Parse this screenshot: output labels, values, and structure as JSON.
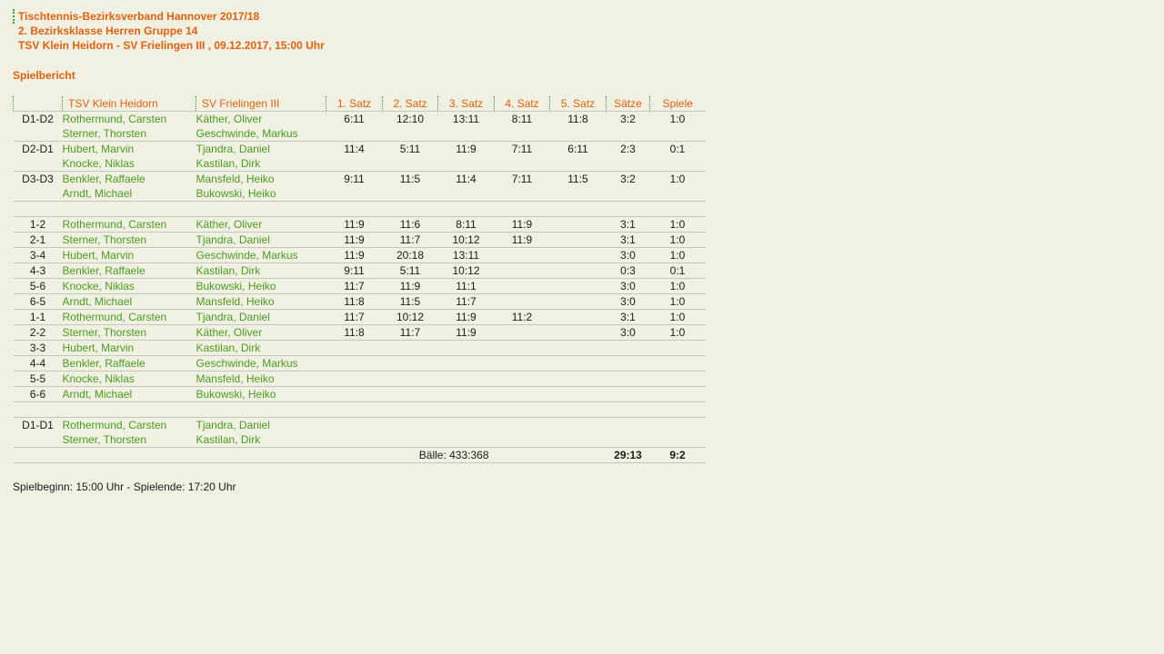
{
  "colors": {
    "background": "#f0f1e2",
    "accent_orange": "#e2600e",
    "player_green": "#4c9b21",
    "row_border": "#c6c7b8",
    "dotted_green": "#3a9e3a"
  },
  "header": {
    "line1": "Tischtennis-Bezirksverband Hannover 2017/18",
    "line2": "2. Bezirksklasse Herren Gruppe 14",
    "line3": "TSV Klein Heidorn - SV Frielingen III , 09.12.2017, 15:00 Uhr",
    "section_title": "Spielbericht"
  },
  "table": {
    "columns": [
      "",
      "TSV Klein Heidorn",
      "SV Frielingen III",
      "1. Satz",
      "2. Satz",
      "3. Satz",
      "4. Satz",
      "5. Satz",
      "Sätze",
      "Spiele"
    ],
    "rows": [
      {
        "no": "D1-D2",
        "home": [
          "Rothermund, Carsten",
          "Sterner, Thorsten"
        ],
        "away": [
          "Käther, Oliver",
          "Geschwinde, Markus"
        ],
        "sets": [
          "6:11",
          "12:10",
          "13:11",
          "8:11",
          "11:8"
        ],
        "saetze": "3:2",
        "spiele": "1:0"
      },
      {
        "no": "D2-D1",
        "home": [
          "Hubert, Marvin",
          "Knocke, Niklas"
        ],
        "away": [
          "Tjandra, Daniel",
          "Kastilan, Dirk"
        ],
        "sets": [
          "11:4",
          "5:11",
          "11:9",
          "7:11",
          "6:11"
        ],
        "saetze": "2:3",
        "spiele": "0:1"
      },
      {
        "no": "D3-D3",
        "home": [
          "Benkler, Raffaele",
          "Arndt, Michael"
        ],
        "away": [
          "Mansfeld, Heiko",
          "Bukowski, Heiko"
        ],
        "sets": [
          "9:11",
          "11:5",
          "11:4",
          "7:11",
          "11:5"
        ],
        "saetze": "3:2",
        "spiele": "1:0"
      },
      {
        "spacer": true
      },
      {
        "no": "1-2",
        "home": [
          "Rothermund, Carsten"
        ],
        "away": [
          "Käther, Oliver"
        ],
        "sets": [
          "11:9",
          "11:6",
          "8:11",
          "11:9",
          ""
        ],
        "saetze": "3:1",
        "spiele": "1:0"
      },
      {
        "no": "2-1",
        "home": [
          "Sterner, Thorsten"
        ],
        "away": [
          "Tjandra, Daniel"
        ],
        "sets": [
          "11:9",
          "11:7",
          "10:12",
          "11:9",
          ""
        ],
        "saetze": "3:1",
        "spiele": "1:0"
      },
      {
        "no": "3-4",
        "home": [
          "Hubert, Marvin"
        ],
        "away": [
          "Geschwinde, Markus"
        ],
        "sets": [
          "11:9",
          "20:18",
          "13:11",
          "",
          ""
        ],
        "saetze": "3:0",
        "spiele": "1:0"
      },
      {
        "no": "4-3",
        "home": [
          "Benkler, Raffaele"
        ],
        "away": [
          "Kastilan, Dirk"
        ],
        "sets": [
          "9:11",
          "5:11",
          "10:12",
          "",
          ""
        ],
        "saetze": "0:3",
        "spiele": "0:1"
      },
      {
        "no": "5-6",
        "home": [
          "Knocke, Niklas"
        ],
        "away": [
          "Bukowski, Heiko"
        ],
        "sets": [
          "11:7",
          "11:9",
          "11:1",
          "",
          ""
        ],
        "saetze": "3:0",
        "spiele": "1:0"
      },
      {
        "no": "6-5",
        "home": [
          "Arndt, Michael"
        ],
        "away": [
          "Mansfeld, Heiko"
        ],
        "sets": [
          "11:8",
          "11:5",
          "11:7",
          "",
          ""
        ],
        "saetze": "3:0",
        "spiele": "1:0"
      },
      {
        "no": "1-1",
        "home": [
          "Rothermund, Carsten"
        ],
        "away": [
          "Tjandra, Daniel"
        ],
        "sets": [
          "11:7",
          "10:12",
          "11:9",
          "11:2",
          ""
        ],
        "saetze": "3:1",
        "spiele": "1:0"
      },
      {
        "no": "2-2",
        "home": [
          "Sterner, Thorsten"
        ],
        "away": [
          "Käther, Oliver"
        ],
        "sets": [
          "11:8",
          "11:7",
          "11:9",
          "",
          ""
        ],
        "saetze": "3:0",
        "spiele": "1:0"
      },
      {
        "no": "3-3",
        "home": [
          "Hubert, Marvin"
        ],
        "away": [
          "Kastilan, Dirk"
        ],
        "sets": [
          "",
          "",
          "",
          "",
          ""
        ],
        "saetze": "",
        "spiele": ""
      },
      {
        "no": "4-4",
        "home": [
          "Benkler, Raffaele"
        ],
        "away": [
          "Geschwinde, Markus"
        ],
        "sets": [
          "",
          "",
          "",
          "",
          ""
        ],
        "saetze": "",
        "spiele": ""
      },
      {
        "no": "5-5",
        "home": [
          "Knocke, Niklas"
        ],
        "away": [
          "Mansfeld, Heiko"
        ],
        "sets": [
          "",
          "",
          "",
          "",
          ""
        ],
        "saetze": "",
        "spiele": ""
      },
      {
        "no": "6-6",
        "home": [
          "Arndt, Michael"
        ],
        "away": [
          "Bukowski, Heiko"
        ],
        "sets": [
          "",
          "",
          "",
          "",
          ""
        ],
        "saetze": "",
        "spiele": ""
      },
      {
        "spacer": true
      },
      {
        "no": "D1-D1",
        "home": [
          "Rothermund, Carsten",
          "Sterner, Thorsten"
        ],
        "away": [
          "Tjandra, Daniel",
          "Kastilan, Dirk"
        ],
        "sets": [
          "",
          "",
          "",
          "",
          ""
        ],
        "saetze": "",
        "spiele": ""
      }
    ],
    "totals": {
      "balls_label": "Bälle: 433:368",
      "saetze_total": "29:13",
      "spiele_total": "9:2"
    }
  },
  "bottom_note": "Spielbeginn: 15:00 Uhr - Spielende: 17:20 Uhr"
}
